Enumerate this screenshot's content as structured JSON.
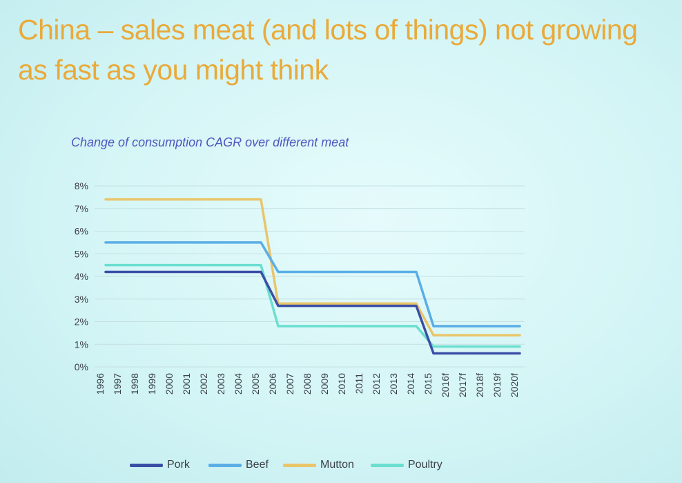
{
  "title": "China – sales meat (and lots of things) not growing as fast as you might think",
  "chart_data": {
    "type": "line",
    "title": "Change of consumption CAGR over different meat",
    "xlabel": "",
    "ylabel": "",
    "ylim": [
      0,
      8
    ],
    "ytick_labels": [
      "0%",
      "1%",
      "2%",
      "3%",
      "4%",
      "5%",
      "6%",
      "7%",
      "8%"
    ],
    "grid": true,
    "legend_position": "bottom",
    "categories": [
      "1996",
      "1997",
      "1998",
      "1999",
      "2000",
      "2001",
      "2002",
      "2003",
      "2004",
      "2005",
      "2006",
      "2007",
      "2008",
      "2009",
      "2010",
      "2011",
      "2012",
      "2013",
      "2014",
      "2015",
      "2016f",
      "2017f",
      "2018f",
      "2019f",
      "2020f"
    ],
    "series": [
      {
        "name": "Pork",
        "color": "#3a4ea6",
        "values": [
          4.2,
          4.2,
          4.2,
          4.2,
          4.2,
          4.2,
          4.2,
          4.2,
          4.2,
          4.2,
          2.7,
          2.7,
          2.7,
          2.7,
          2.7,
          2.7,
          2.7,
          2.7,
          2.7,
          0.6,
          0.6,
          0.6,
          0.6,
          0.6,
          0.6
        ]
      },
      {
        "name": "Beef",
        "color": "#5aaee5",
        "values": [
          5.5,
          5.5,
          5.5,
          5.5,
          5.5,
          5.5,
          5.5,
          5.5,
          5.5,
          5.5,
          4.2,
          4.2,
          4.2,
          4.2,
          4.2,
          4.2,
          4.2,
          4.2,
          4.2,
          1.8,
          1.8,
          1.8,
          1.8,
          1.8,
          1.8
        ]
      },
      {
        "name": "Mutton",
        "color": "#e9c56a",
        "values": [
          7.4,
          7.4,
          7.4,
          7.4,
          7.4,
          7.4,
          7.4,
          7.4,
          7.4,
          7.4,
          2.8,
          2.8,
          2.8,
          2.8,
          2.8,
          2.8,
          2.8,
          2.8,
          2.8,
          1.4,
          1.4,
          1.4,
          1.4,
          1.4,
          1.4
        ]
      },
      {
        "name": "Poultry",
        "color": "#6adfcf",
        "values": [
          4.5,
          4.5,
          4.5,
          4.5,
          4.5,
          4.5,
          4.5,
          4.5,
          4.5,
          4.5,
          1.8,
          1.8,
          1.8,
          1.8,
          1.8,
          1.8,
          1.8,
          1.8,
          1.8,
          0.9,
          0.9,
          0.9,
          0.9,
          0.9,
          0.9
        ]
      }
    ]
  }
}
